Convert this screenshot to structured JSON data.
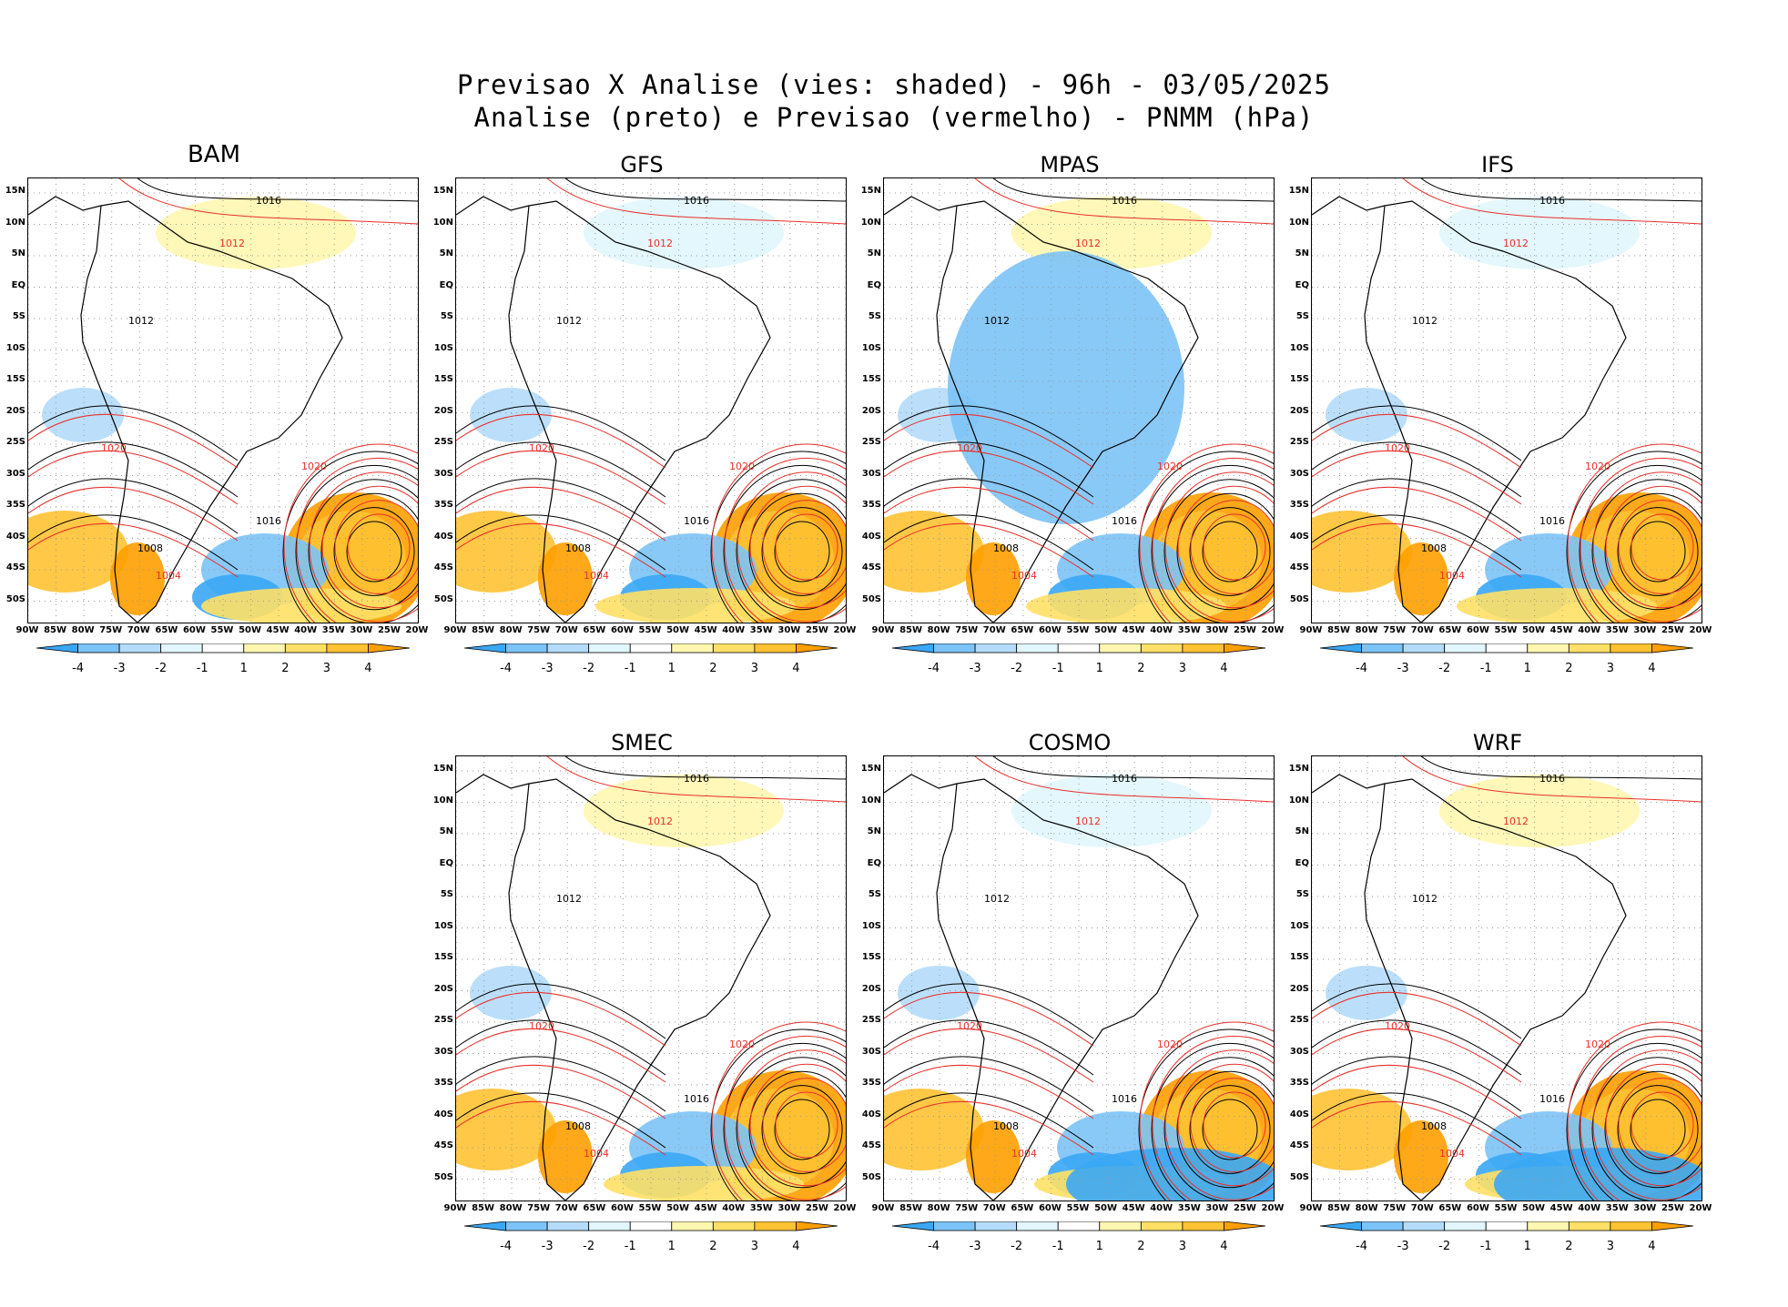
{
  "title": {
    "line1": "Previsao X Analise (vies: shaded) - 96h - 03/05/2025",
    "line2": "Analise (preto) e Previsao (vermelho) - PNMM (hPa)"
  },
  "panels": [
    {
      "name": "BAM",
      "col": 0,
      "row": 0,
      "big_title": true
    },
    {
      "name": "GFS",
      "col": 1,
      "row": 0
    },
    {
      "name": "MPAS",
      "col": 2,
      "row": 0
    },
    {
      "name": "IFS",
      "col": 3,
      "row": 0
    },
    {
      "name": "SMEC",
      "col": 1,
      "row": 1
    },
    {
      "name": "COSMO",
      "col": 2,
      "row": 1
    },
    {
      "name": "WRF",
      "col": 3,
      "row": 1
    }
  ],
  "lat_labels": [
    "15N",
    "10N",
    "5N",
    "EQ",
    "5S",
    "10S",
    "15S",
    "20S",
    "25S",
    "30S",
    "35S",
    "40S",
    "45S",
    "50S"
  ],
  "lon_labels": [
    "90W",
    "85W",
    "80W",
    "75W",
    "70W",
    "65W",
    "60W",
    "55W",
    "50W",
    "45W",
    "40W",
    "35W",
    "30W",
    "25W",
    "20W"
  ],
  "lon_labels_alt": {
    "SMEC": [
      "90W",
      "85W",
      "80W",
      "75W",
      "70W",
      "65W",
      "60W",
      "55W",
      "50W",
      "45W",
      "40W",
      "35W",
      "30W",
      "25W",
      "20W"
    ]
  },
  "colorbar": {
    "labels": [
      "-4",
      "-3",
      "-2",
      "-1",
      "1",
      "2",
      "3",
      "4"
    ],
    "colors": [
      "#3aa7f5",
      "#7cc3f7",
      "#b4dcfa",
      "#e1f6fd",
      "#ffffff",
      "#fff7b0",
      "#ffe066",
      "#ffc233",
      "#ff9f00"
    ]
  },
  "isobar_labels": {
    "analysis_color": "#000000",
    "forecast_color": "#e8302a",
    "values": [
      "1004",
      "1008",
      "1012",
      "1016",
      "1020"
    ]
  }
}
